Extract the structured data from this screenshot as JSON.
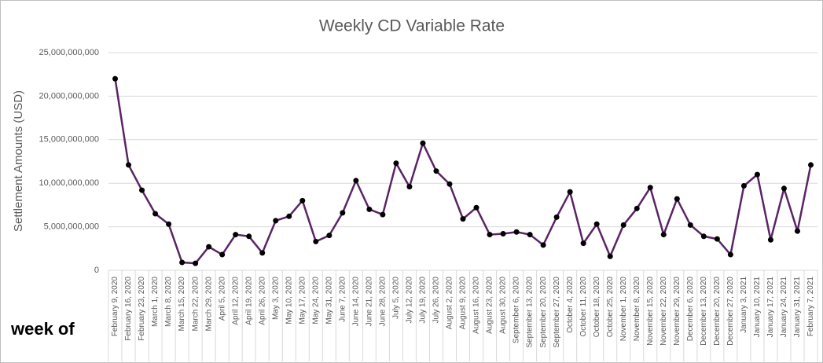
{
  "chart_data": {
    "type": "line",
    "title": "Weekly CD Variable Rate",
    "y_label": "Settlement Amounts (USD)",
    "annotation": "week of",
    "color": "#5a2466",
    "marker_color": "#000000",
    "grid": true,
    "ylim": [
      0,
      25000000000
    ],
    "yticks": [
      0,
      {
        "value": 5000000000,
        "label": "5,000,000,000"
      },
      {
        "value": 10000000000,
        "label": "10,000,000,000"
      },
      {
        "value": 15000000000,
        "label": "15,000,000,000"
      },
      {
        "value": 20000000000,
        "label": "20,000,000,000"
      },
      {
        "value": 25000000000,
        "label": "25,000,000,000"
      }
    ],
    "categories": [
      "February 9, 2020",
      "February 16, 2020",
      "February 23, 2020",
      "March 1, 2020",
      "March 8, 2020",
      "March 15, 2020",
      "March 22, 2020",
      "March 29, 2020",
      "April 5, 2020",
      "April 12, 2020",
      "April 19, 2020",
      "April 26, 2020",
      "May 3, 2020",
      "May 10, 2020",
      "May 17, 2020",
      "May 24, 2020",
      "May 31, 2020",
      "June 7, 2020",
      "June 14, 2020",
      "June 21, 2020",
      "June 28, 2020",
      "July 5, 2020",
      "July 12, 2020",
      "July 19, 2020",
      "July 26, 2020",
      "August 2, 2020",
      "August 9, 2020",
      "August 16, 2020",
      "August 23, 2020",
      "August 30, 2020",
      "September 6, 2020",
      "September 13, 2020",
      "September 20, 2020",
      "September 27, 2020",
      "October 4, 2020",
      "October 11, 2020",
      "October 18, 2020",
      "October 25, 2020",
      "November 1, 2020",
      "November 8, 2020",
      "November 15, 2020",
      "November 22, 2020",
      "November 29, 2020",
      "December 6, 2020",
      "December 13, 2020",
      "December 20, 2020",
      "December 27, 2020",
      "January 3, 2021",
      "January 10, 2021",
      "January 17, 2021",
      "January 24, 2021",
      "January 31, 2021",
      "February 7, 2021"
    ],
    "values": [
      22000000000,
      12100000000,
      9200000000,
      6500000000,
      5300000000,
      900000000,
      800000000,
      2700000000,
      1800000000,
      4100000000,
      3900000000,
      2000000000,
      5700000000,
      6200000000,
      8000000000,
      3300000000,
      4000000000,
      6600000000,
      10300000000,
      7000000000,
      6400000000,
      12300000000,
      9600000000,
      14600000000,
      11400000000,
      9900000000,
      5900000000,
      7200000000,
      4100000000,
      4200000000,
      4400000000,
      4100000000,
      2900000000,
      6100000000,
      9000000000,
      3100000000,
      5300000000,
      1600000000,
      5200000000,
      7100000000,
      9500000000,
      4100000000,
      8200000000,
      5200000000,
      3900000000,
      3600000000,
      1800000000,
      9700000000,
      11000000000,
      3500000000,
      9400000000,
      4500000000,
      12100000000
    ]
  }
}
